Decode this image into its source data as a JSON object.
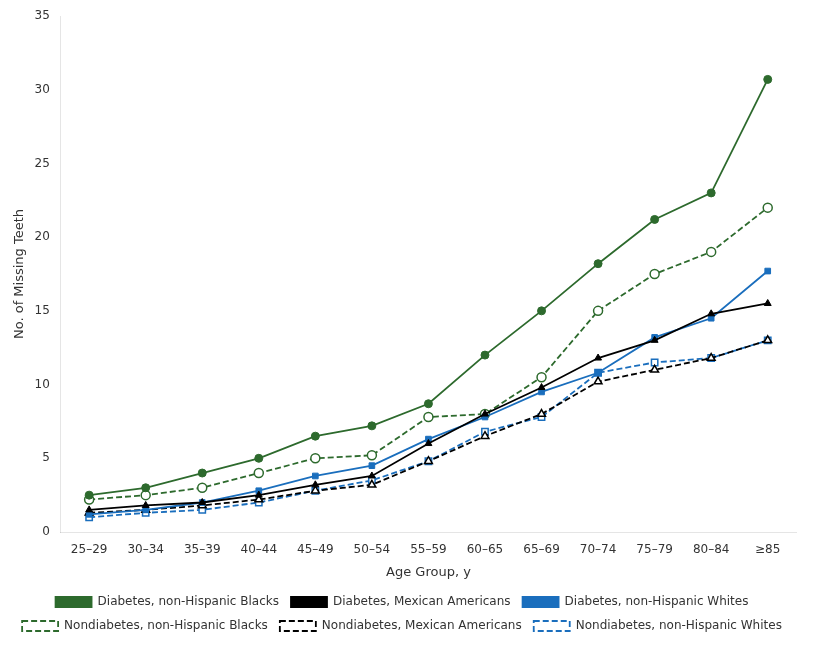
{
  "chart_data": {
    "type": "line",
    "xlabel": "Age Group, y",
    "ylabel": "No. of Missing Teeth",
    "categories": [
      "25–29",
      "30–34",
      "35–39",
      "40–44",
      "45–49",
      "50–54",
      "55–59",
      "60–65",
      "65–69",
      "70–74",
      "75–79",
      "80–84",
      "≥85"
    ],
    "series": [
      {
        "name": "Diabetes, non-Hispanic Blacks",
        "color": "#2d6a2d",
        "marker": "circle",
        "line_style": "solid",
        "values": [
          2.5,
          3.0,
          4.0,
          5.0,
          6.5,
          7.2,
          8.7,
          12.0,
          15.0,
          18.2,
          21.2,
          23.0,
          30.7
        ]
      },
      {
        "name": "Diabetes, Mexican Americans",
        "color": "#000000",
        "marker": "triangle",
        "line_style": "solid",
        "values": [
          1.5,
          1.8,
          2.0,
          2.5,
          3.2,
          3.8,
          6.0,
          8.0,
          9.8,
          11.8,
          13.0,
          14.8,
          15.5
        ]
      },
      {
        "name": "Diabetes, non-Hispanic Whites",
        "color": "#1a6ebd",
        "marker": "square",
        "line_style": "solid",
        "values": [
          1.2,
          1.5,
          2.0,
          2.8,
          3.8,
          4.5,
          6.3,
          7.8,
          9.5,
          10.8,
          13.2,
          14.5,
          17.7
        ]
      },
      {
        "name": "Nondiabetes, non-Hispanic Blacks",
        "color": "#2d6a2d",
        "marker": "circle",
        "line_style": "dashed",
        "values": [
          2.2,
          2.5,
          3.0,
          4.0,
          5.0,
          5.2,
          7.8,
          8.0,
          10.5,
          15.0,
          17.5,
          19.0,
          22.0
        ]
      },
      {
        "name": "Nondiabetes, Mexican Americans",
        "color": "#000000",
        "marker": "triangle",
        "line_style": "dashed",
        "values": [
          1.3,
          1.5,
          1.8,
          2.2,
          2.8,
          3.2,
          4.8,
          6.5,
          8.0,
          10.2,
          11.0,
          11.8,
          13.0
        ]
      },
      {
        "name": "Nondiabetes, non-Hispanic Whites",
        "color": "#1a6ebd",
        "marker": "square",
        "line_style": "dashed",
        "values": [
          1.0,
          1.3,
          1.5,
          2.0,
          2.8,
          3.5,
          4.8,
          6.8,
          7.8,
          10.8,
          11.5,
          11.8,
          13.0
        ]
      }
    ],
    "ylim": [
      0,
      35
    ],
    "yticks": [
      0,
      5,
      10,
      15,
      20,
      25,
      30,
      35
    ],
    "grid": false,
    "legend": "bottom"
  }
}
